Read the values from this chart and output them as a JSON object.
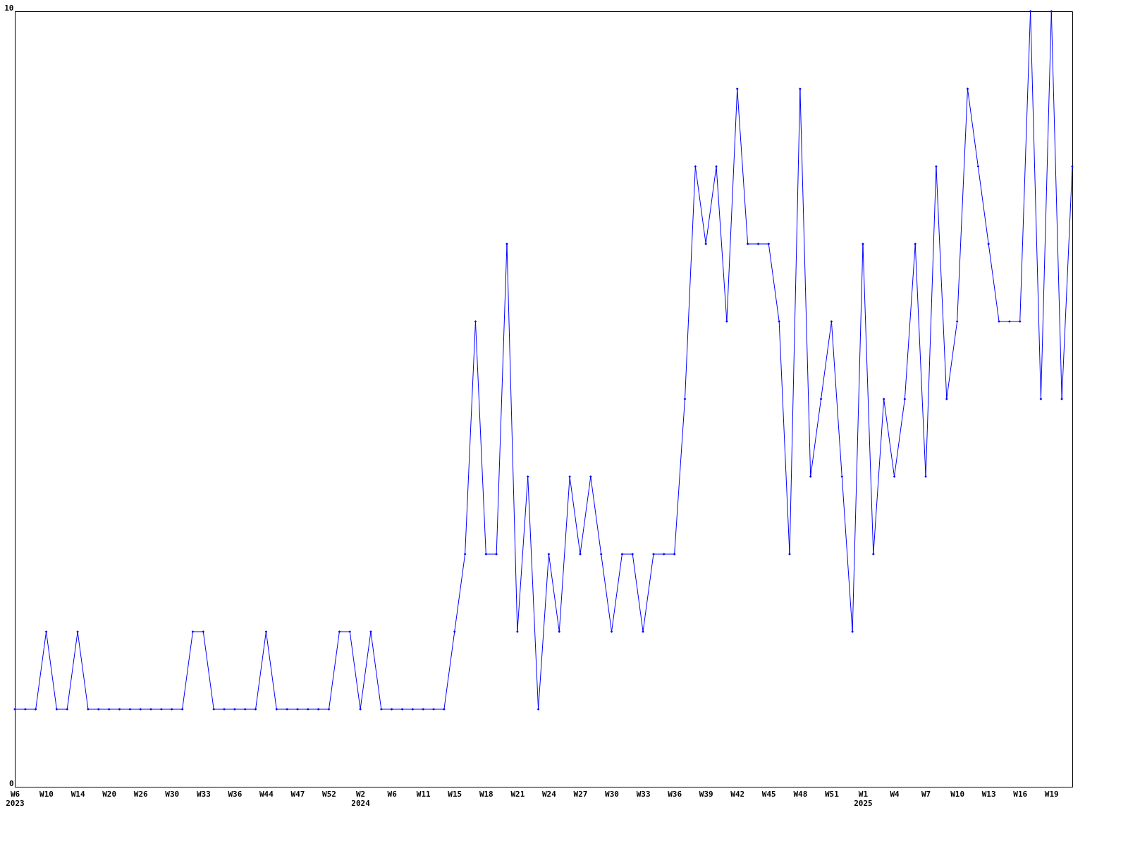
{
  "chart_data": {
    "type": "line",
    "categories": [
      "W6\n2023",
      null,
      null,
      "W10",
      null,
      null,
      "W14",
      null,
      null,
      "W20",
      null,
      null,
      "W26",
      null,
      null,
      "W30",
      null,
      null,
      "W33",
      null,
      null,
      "W36",
      null,
      null,
      "W44",
      null,
      null,
      "W47",
      null,
      null,
      "W52",
      null,
      null,
      "W2\n2024",
      null,
      null,
      "W6",
      null,
      null,
      "W11",
      null,
      null,
      "W15",
      null,
      null,
      "W18",
      null,
      null,
      "W21",
      null,
      null,
      "W24",
      null,
      null,
      "W27",
      null,
      null,
      "W30",
      null,
      null,
      "W33",
      null,
      null,
      "W36",
      null,
      null,
      "W39",
      null,
      null,
      "W42",
      null,
      null,
      "W45",
      null,
      null,
      "W48",
      null,
      null,
      "W51",
      null,
      null,
      "W1\n2025",
      null,
      null,
      "W4",
      null,
      null,
      "W7",
      null,
      null,
      "W10",
      null,
      null,
      "W13",
      null,
      null,
      "W16",
      null,
      null,
      "W19",
      null,
      null
    ],
    "series": [
      {
        "color": "#0000ff",
        "values": [
          1,
          1,
          1,
          2,
          1,
          1,
          2,
          1,
          1,
          1,
          1,
          1,
          1,
          1,
          1,
          1,
          1,
          2,
          2,
          1,
          1,
          1,
          1,
          1,
          2,
          1,
          1,
          1,
          1,
          1,
          1,
          2,
          2,
          1,
          2,
          1,
          1,
          1,
          1,
          1,
          1,
          1,
          2,
          3,
          6,
          3,
          3,
          7,
          2,
          4,
          1,
          3,
          2,
          4,
          3,
          4,
          3,
          2,
          3,
          3,
          2,
          3,
          3,
          3,
          5,
          8,
          7,
          8,
          6,
          9,
          7,
          7,
          7,
          6,
          3,
          9,
          4,
          5,
          6,
          4,
          2,
          7,
          3,
          5,
          4,
          5,
          7,
          4,
          8,
          5,
          6,
          9,
          8,
          7,
          6,
          6,
          6,
          10,
          5,
          10,
          5,
          8
        ]
      }
    ],
    "ylim": [
      0,
      10
    ],
    "yticks": [
      0,
      10
    ],
    "grid": false,
    "marker": "diamond",
    "line_style": "solid"
  }
}
